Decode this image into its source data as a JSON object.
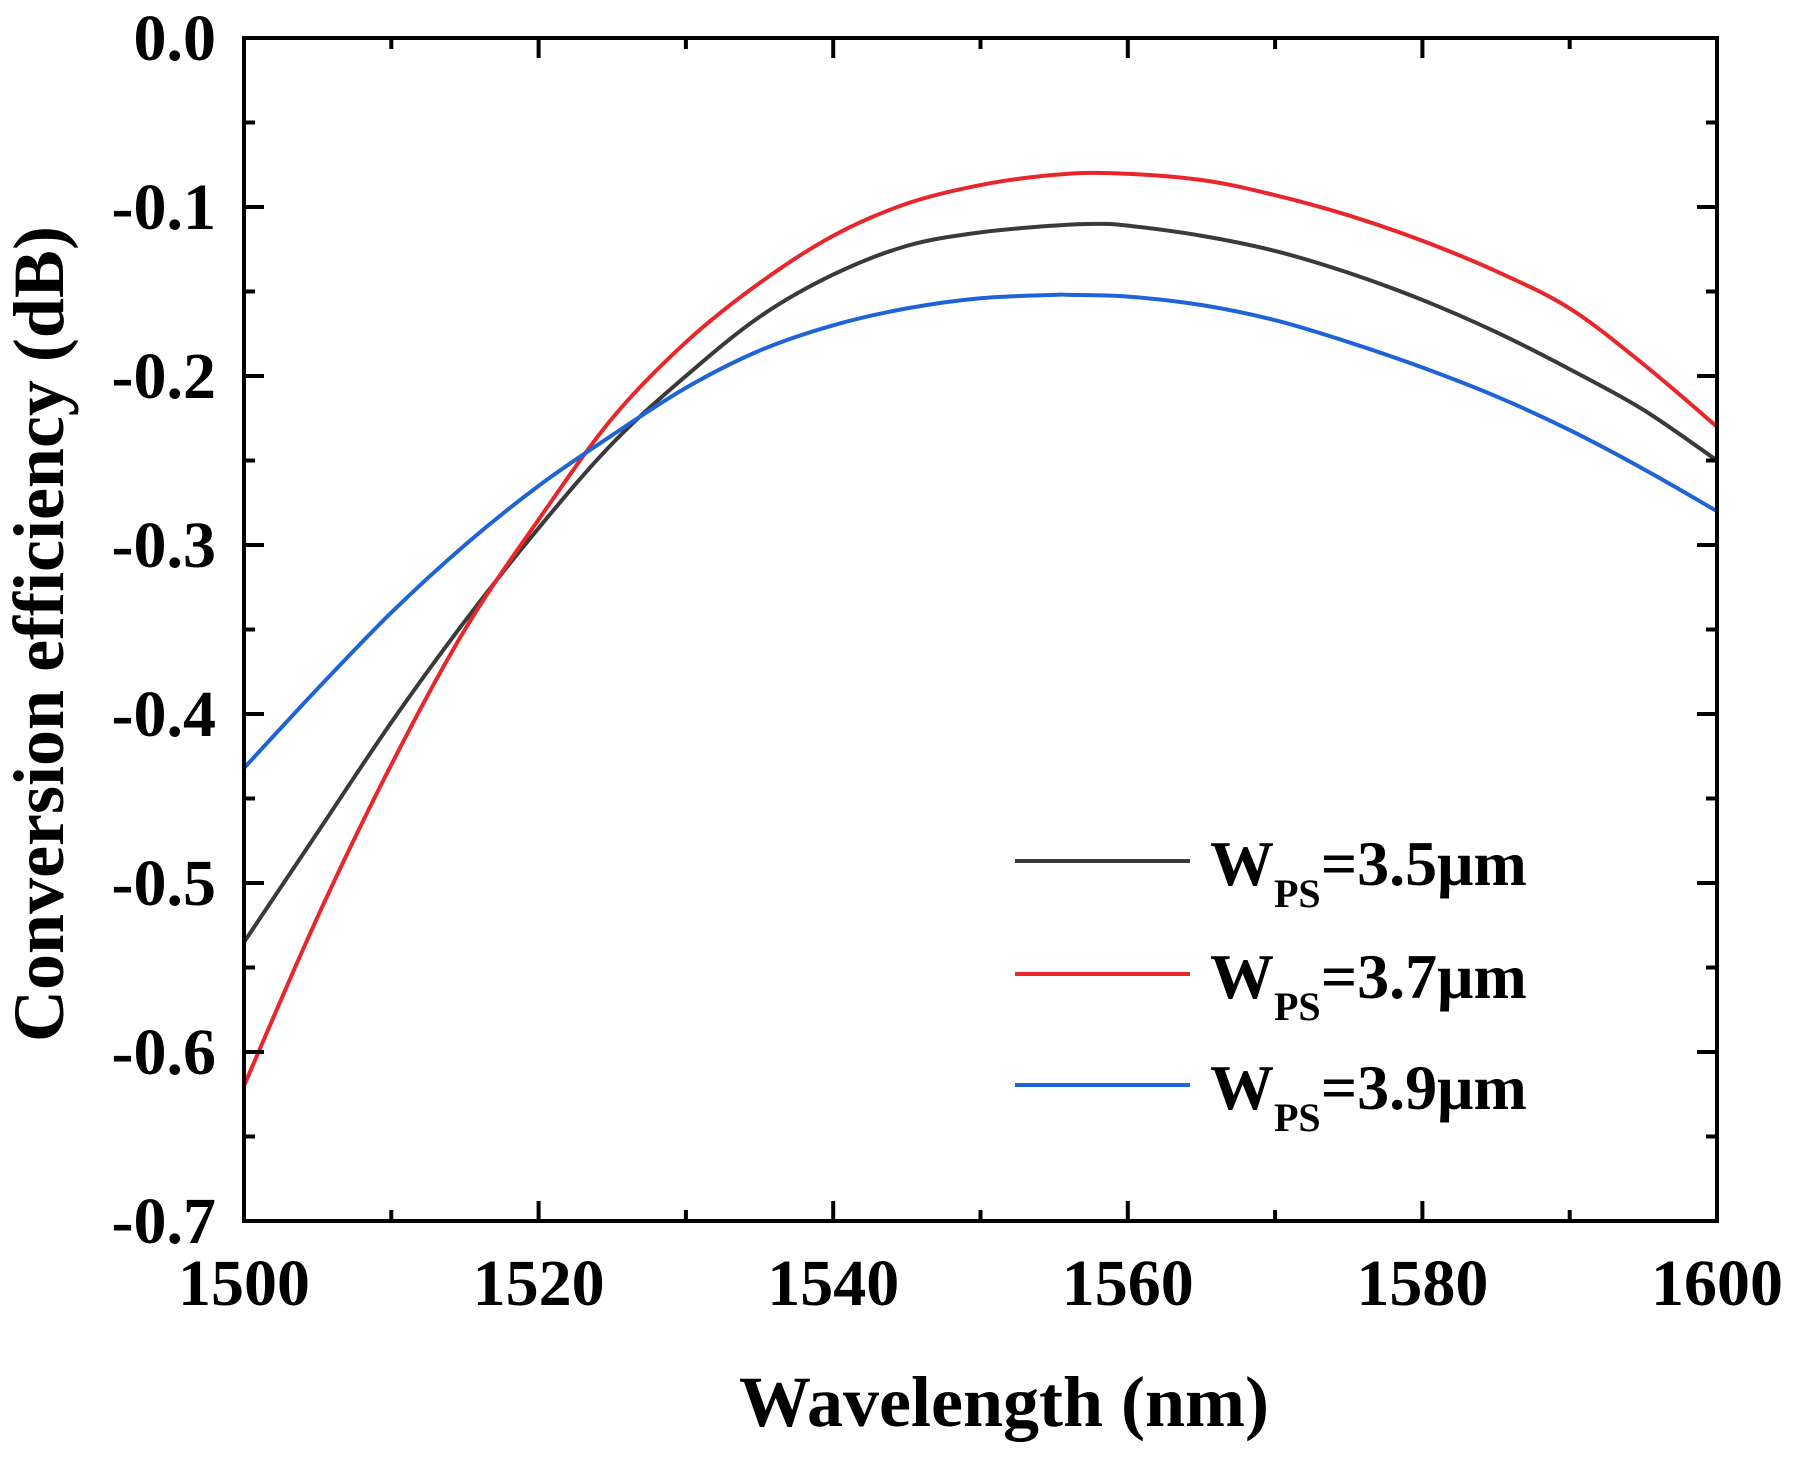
{
  "chart_data": {
    "type": "line",
    "title": "",
    "xlabel": "Wavelength (nm)",
    "ylabel": "Conversion efficiency (dB)",
    "xlim": [
      1500,
      1600
    ],
    "ylim": [
      -0.7,
      0.0
    ],
    "xticks": [
      1500,
      1520,
      1540,
      1560,
      1580,
      1600
    ],
    "xtick_labels": [
      "1500",
      "1520",
      "1540",
      "1560",
      "1580",
      "1600"
    ],
    "yticks": [
      0.0,
      -0.1,
      -0.2,
      -0.3,
      -0.4,
      -0.5,
      -0.6,
      -0.7
    ],
    "ytick_labels": [
      "0.0",
      "-0.1",
      "-0.2",
      "-0.3",
      "-0.4",
      "-0.5",
      "-0.6",
      "-0.7"
    ],
    "grid": false,
    "legend_position": "bottom-right",
    "series": [
      {
        "name": "W_PS=3.5μm",
        "legend_main": "W",
        "legend_sub": "PS",
        "legend_rest": "=3.5μm",
        "color": "#3a3a3a",
        "x": [
          1500,
          1505,
          1510,
          1515,
          1520,
          1525,
          1530,
          1535,
          1540,
          1545,
          1550,
          1555,
          1558,
          1560,
          1565,
          1570,
          1575,
          1580,
          1585,
          1590,
          1595,
          1600
        ],
        "y": [
          -0.535,
          -0.47,
          -0.405,
          -0.345,
          -0.29,
          -0.24,
          -0.2,
          -0.165,
          -0.14,
          -0.123,
          -0.115,
          -0.111,
          -0.11,
          -0.111,
          -0.117,
          -0.126,
          -0.139,
          -0.155,
          -0.174,
          -0.196,
          -0.22,
          -0.25
        ]
      },
      {
        "name": "W_PS=3.7μm",
        "legend_main": "W",
        "legend_sub": "PS",
        "legend_rest": "=3.7μm",
        "color": "#e8262b",
        "x": [
          1500,
          1505,
          1510,
          1515,
          1520,
          1525,
          1530,
          1535,
          1540,
          1545,
          1550,
          1555,
          1559,
          1565,
          1570,
          1575,
          1580,
          1585,
          1590,
          1595,
          1600
        ],
        "y": [
          -0.62,
          -0.52,
          -0.43,
          -0.35,
          -0.285,
          -0.225,
          -0.18,
          -0.145,
          -0.117,
          -0.098,
          -0.087,
          -0.081,
          -0.08,
          -0.084,
          -0.093,
          -0.105,
          -0.12,
          -0.138,
          -0.16,
          -0.193,
          -0.23
        ]
      },
      {
        "name": "W_PS=3.9μm",
        "legend_main": "W",
        "legend_sub": "PS",
        "legend_rest": "=3.9μm",
        "color": "#1f64d6",
        "x": [
          1500,
          1505,
          1510,
          1515,
          1520,
          1525,
          1530,
          1535,
          1540,
          1545,
          1550,
          1555,
          1556,
          1560,
          1565,
          1570,
          1575,
          1580,
          1585,
          1590,
          1595,
          1600
        ],
        "y": [
          -0.432,
          -0.385,
          -0.34,
          -0.3,
          -0.265,
          -0.235,
          -0.207,
          -0.185,
          -0.17,
          -0.16,
          -0.154,
          -0.152,
          -0.152,
          -0.153,
          -0.158,
          -0.167,
          -0.18,
          -0.195,
          -0.212,
          -0.232,
          -0.255,
          -0.28
        ]
      }
    ]
  }
}
